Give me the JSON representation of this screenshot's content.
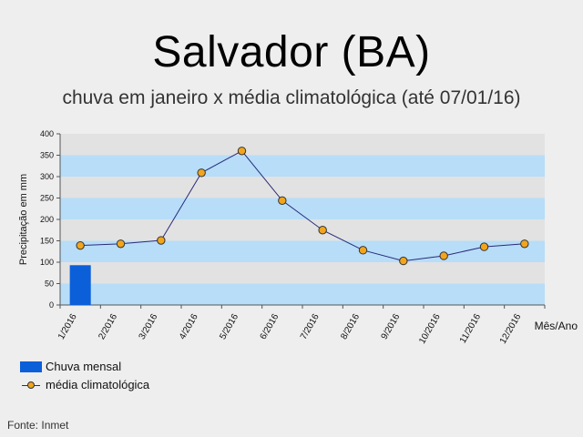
{
  "header": {
    "title": "Salvador (BA)",
    "subtitle": "chuva em janeiro x média climatológica (até 07/01/16)"
  },
  "legend": {
    "bar_label": "Chuva mensal",
    "line_label": "média climatológica"
  },
  "source": "Fonte: Inmet",
  "colors": {
    "bar": "#0b5fd9",
    "line": "#2a2a7a",
    "marker": "#f2a51c",
    "band_blue": "#b7ddf8",
    "band_gray": "#e2e2e2"
  },
  "chart_data": {
    "type": "bar",
    "title": "Salvador (BA)",
    "subtitle": "chuva em janeiro x média climatológica (até 07/01/16)",
    "xlabel": "Mês/Ano",
    "ylabel": "Precipitação em mm",
    "ylim": [
      0,
      400
    ],
    "yticks": [
      0,
      50,
      100,
      150,
      200,
      250,
      300,
      350,
      400
    ],
    "categories": [
      "1/2016",
      "2/2016",
      "3/2016",
      "4/2016",
      "5/2016",
      "6/2016",
      "7/2016",
      "8/2016",
      "9/2016",
      "10/2016",
      "11/2016",
      "12/2016"
    ],
    "series": [
      {
        "name": "Chuva mensal",
        "type": "bar",
        "values": [
          93,
          null,
          null,
          null,
          null,
          null,
          null,
          null,
          null,
          null,
          null,
          null
        ]
      },
      {
        "name": "média climatológica",
        "type": "line",
        "values": [
          139,
          143,
          151,
          309,
          360,
          244,
          175,
          128,
          103,
          115,
          136,
          143
        ]
      }
    ],
    "grid": "horizontal alternating bands",
    "legend_position": "bottom-left"
  }
}
